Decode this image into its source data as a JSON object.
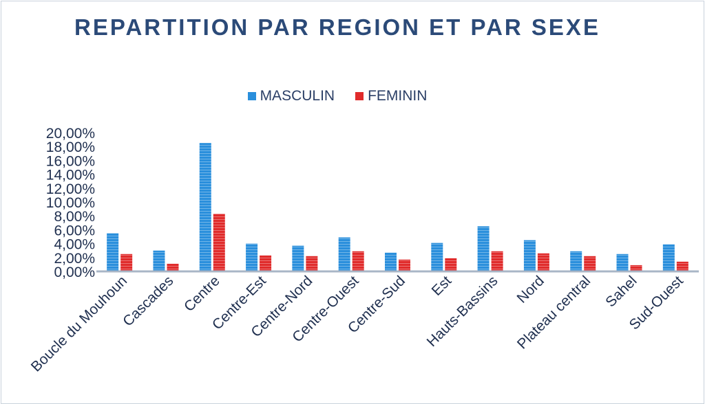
{
  "chart_data": {
    "type": "bar",
    "title": "REPARTITION PAR REGION ET PAR SEXE",
    "categories": [
      "Boucle du Mouhoun",
      "Cascades",
      "Centre",
      "Centre-Est",
      "Centre-Nord",
      "Centre-Ouest",
      "Centre-Sud",
      "Est",
      "Hauts-Bassins",
      "Nord",
      "Plateau central",
      "Sahel",
      "Sud-Ouest"
    ],
    "series": [
      {
        "name": "MASCULIN",
        "color": "#2a8fdc",
        "values": [
          5.5,
          3.0,
          18.5,
          4.0,
          3.7,
          4.9,
          2.7,
          4.1,
          6.5,
          4.5,
          2.9,
          2.5,
          3.9
        ]
      },
      {
        "name": "FEMININ",
        "color": "#e02b2b",
        "values": [
          2.5,
          1.1,
          8.3,
          2.3,
          2.2,
          2.9,
          1.7,
          1.9,
          2.9,
          2.6,
          2.2,
          0.9,
          1.4
        ]
      }
    ],
    "yticks": [
      "0,00%",
      "2,00%",
      "4,00%",
      "6,00%",
      "8,00%",
      "10,00%",
      "12,00%",
      "14,00%",
      "16,00%",
      "18,00%",
      "20,00%"
    ],
    "ylim": [
      0,
      20
    ],
    "legend_position": "top",
    "grid": false
  }
}
